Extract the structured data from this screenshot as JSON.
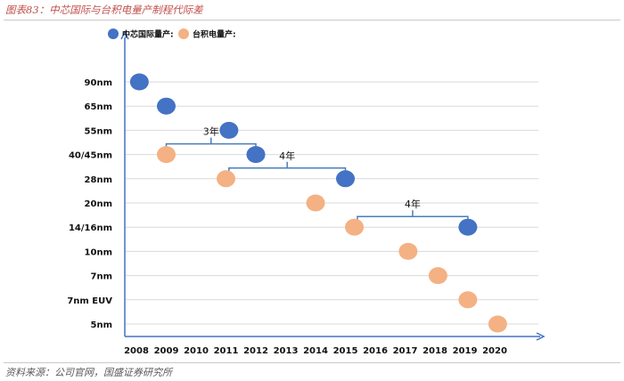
{
  "header": {
    "title": "图表83：中芯国际与台积电量产制程代际差"
  },
  "footer": {
    "source": "资料来源：公司官网，国盛证券研究所"
  },
  "colors": {
    "smic": "#4472c4",
    "tsmc": "#f4b183",
    "grid": "#d9d9d9",
    "axis": "#4472c4",
    "bracket": "#4a7ebb"
  },
  "chart_data": {
    "type": "scatter",
    "x_categories": [
      "2008",
      "2009",
      "2010",
      "2011",
      "2012",
      "2013",
      "2014",
      "2015",
      "2016",
      "2017",
      "2018",
      "2019",
      "2020"
    ],
    "y_categories": [
      "90nm",
      "65nm",
      "55nm",
      "40/45nm",
      "28nm",
      "20nm",
      "14/16nm",
      "10nm",
      "7nm",
      "7nm EUV",
      "5nm"
    ],
    "series": [
      {
        "name": "中芯国际量产:",
        "color": "#4472c4",
        "points": [
          {
            "x": 2008.1,
            "y": "90nm"
          },
          {
            "x": 2009.0,
            "y": "65nm"
          },
          {
            "x": 2011.1,
            "y": "55nm"
          },
          {
            "x": 2012.0,
            "y": "40/45nm"
          },
          {
            "x": 2015.0,
            "y": "28nm"
          },
          {
            "x": 2019.1,
            "y": "14/16nm"
          }
        ]
      },
      {
        "name": "台积电量产:",
        "color": "#f4b183",
        "points": [
          {
            "x": 2009.0,
            "y": "40/45nm"
          },
          {
            "x": 2011.0,
            "y": "28nm"
          },
          {
            "x": 2014.0,
            "y": "20nm"
          },
          {
            "x": 2015.3,
            "y": "14/16nm"
          },
          {
            "x": 2017.1,
            "y": "10nm"
          },
          {
            "x": 2018.1,
            "y": "7nm"
          },
          {
            "x": 2019.1,
            "y": "7nm EUV"
          },
          {
            "x": 2020.1,
            "y": "5nm"
          }
        ]
      }
    ],
    "annotations": [
      {
        "label": "3年",
        "from_x": 2009.0,
        "to_x": 2012.0,
        "y": "40/45nm"
      },
      {
        "label": "4年",
        "from_x": 2011.1,
        "to_x": 2015.0,
        "y": "28nm"
      },
      {
        "label": "4年",
        "from_x": 2015.4,
        "to_x": 2019.1,
        "y": "14/16nm"
      }
    ],
    "grid": true,
    "legend_position": "top-left"
  }
}
